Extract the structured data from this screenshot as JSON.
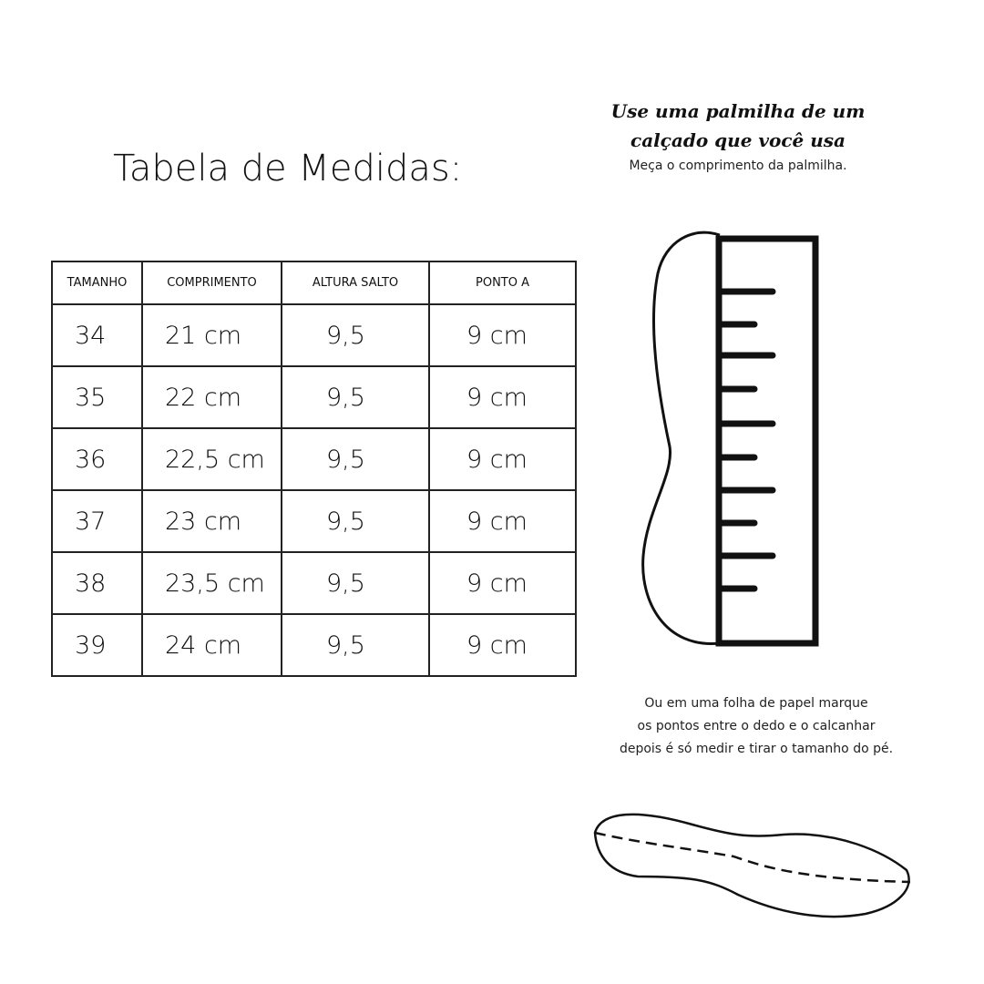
{
  "title": "Tabela de Medidas:",
  "instructions": {
    "heading_line1": "Use uma palmilha de um",
    "heading_line2": "calçado que você usa",
    "subtitle": "Meça o comprimento da palmilha.",
    "alt_line1": "Ou em uma folha de papel marque",
    "alt_line2": "os pontos entre o dedo e o calcanhar",
    "alt_line3": "depois é só medir e tirar o tamanho do pé."
  },
  "table": {
    "headers": [
      "TAMANHO",
      "COMPRIMENTO",
      "ALTURA SALTO",
      "PONTO A"
    ],
    "rows": [
      [
        "34",
        "21 cm",
        "9,5",
        "9 cm"
      ],
      [
        "35",
        "22 cm",
        "9,5",
        "9 cm"
      ],
      [
        "36",
        "22,5 cm",
        "9,5",
        "9 cm"
      ],
      [
        "37",
        "23 cm",
        "9,5",
        "9 cm"
      ],
      [
        "38",
        "23,5 cm",
        "9,5",
        "9 cm"
      ],
      [
        "39",
        "24 cm",
        "9,5",
        "9 cm"
      ]
    ]
  }
}
